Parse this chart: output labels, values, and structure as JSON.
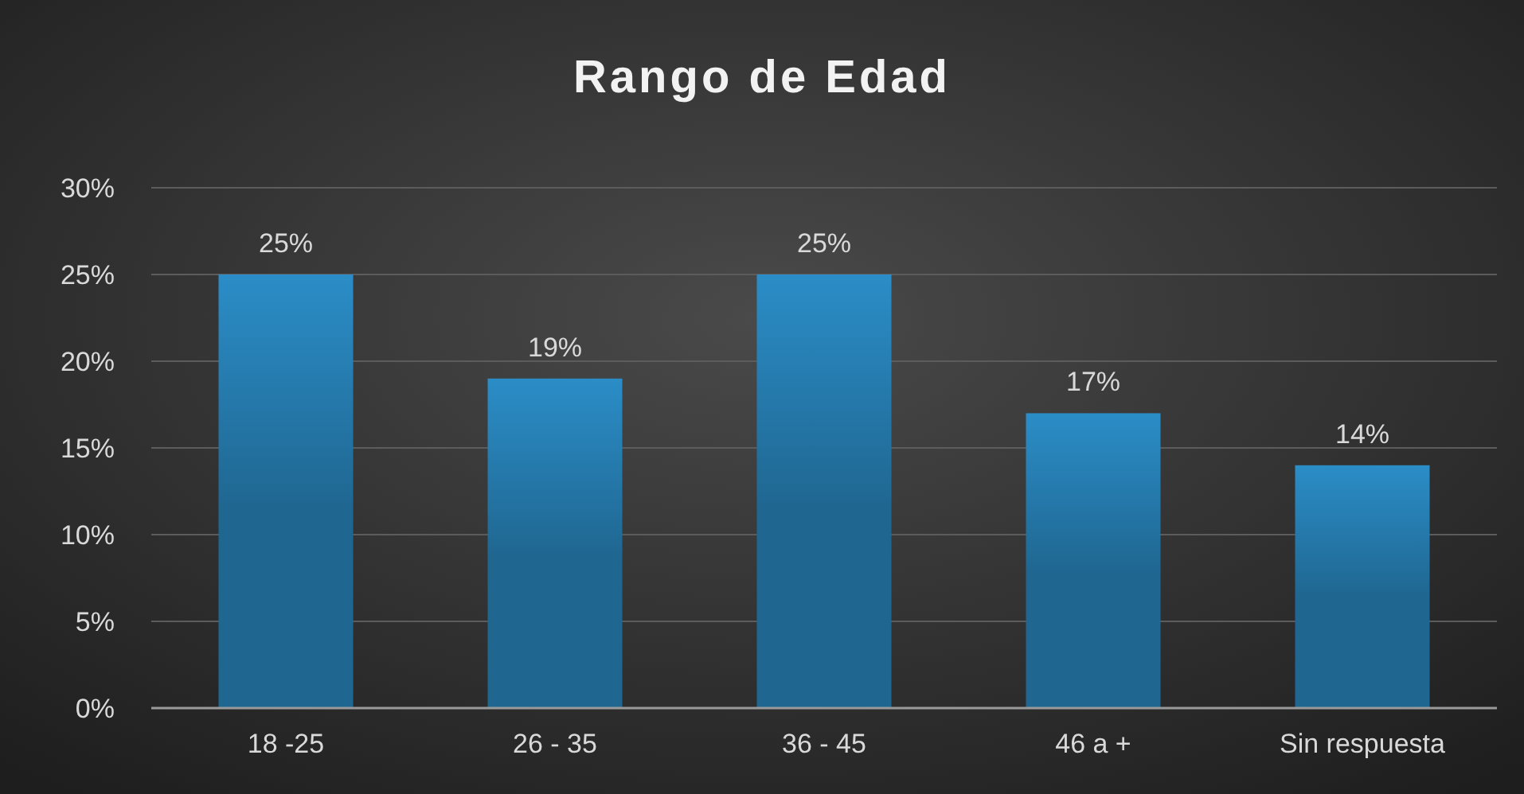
{
  "chart_data": {
    "type": "bar",
    "title": "Rango de Edad",
    "categories": [
      "18 -25",
      "26  -  35",
      "36 - 45",
      "46 a +",
      "Sin  respuesta"
    ],
    "values": [
      25,
      19,
      25,
      17,
      14
    ],
    "value_labels": [
      "25%",
      "19%",
      "25%",
      "17%",
      "14%"
    ],
    "color": "#1f6690",
    "ylim": [
      0,
      30
    ],
    "yticks": [
      {
        "value": 0,
        "label": "0%"
      },
      {
        "value": 5,
        "label": "5%"
      },
      {
        "value": 10,
        "label": "10%"
      },
      {
        "value": 15,
        "label": "15%"
      },
      {
        "value": 20,
        "label": "20%"
      },
      {
        "value": 25,
        "label": "25%"
      },
      {
        "value": 30,
        "label": "30%"
      }
    ],
    "grid": "y"
  }
}
